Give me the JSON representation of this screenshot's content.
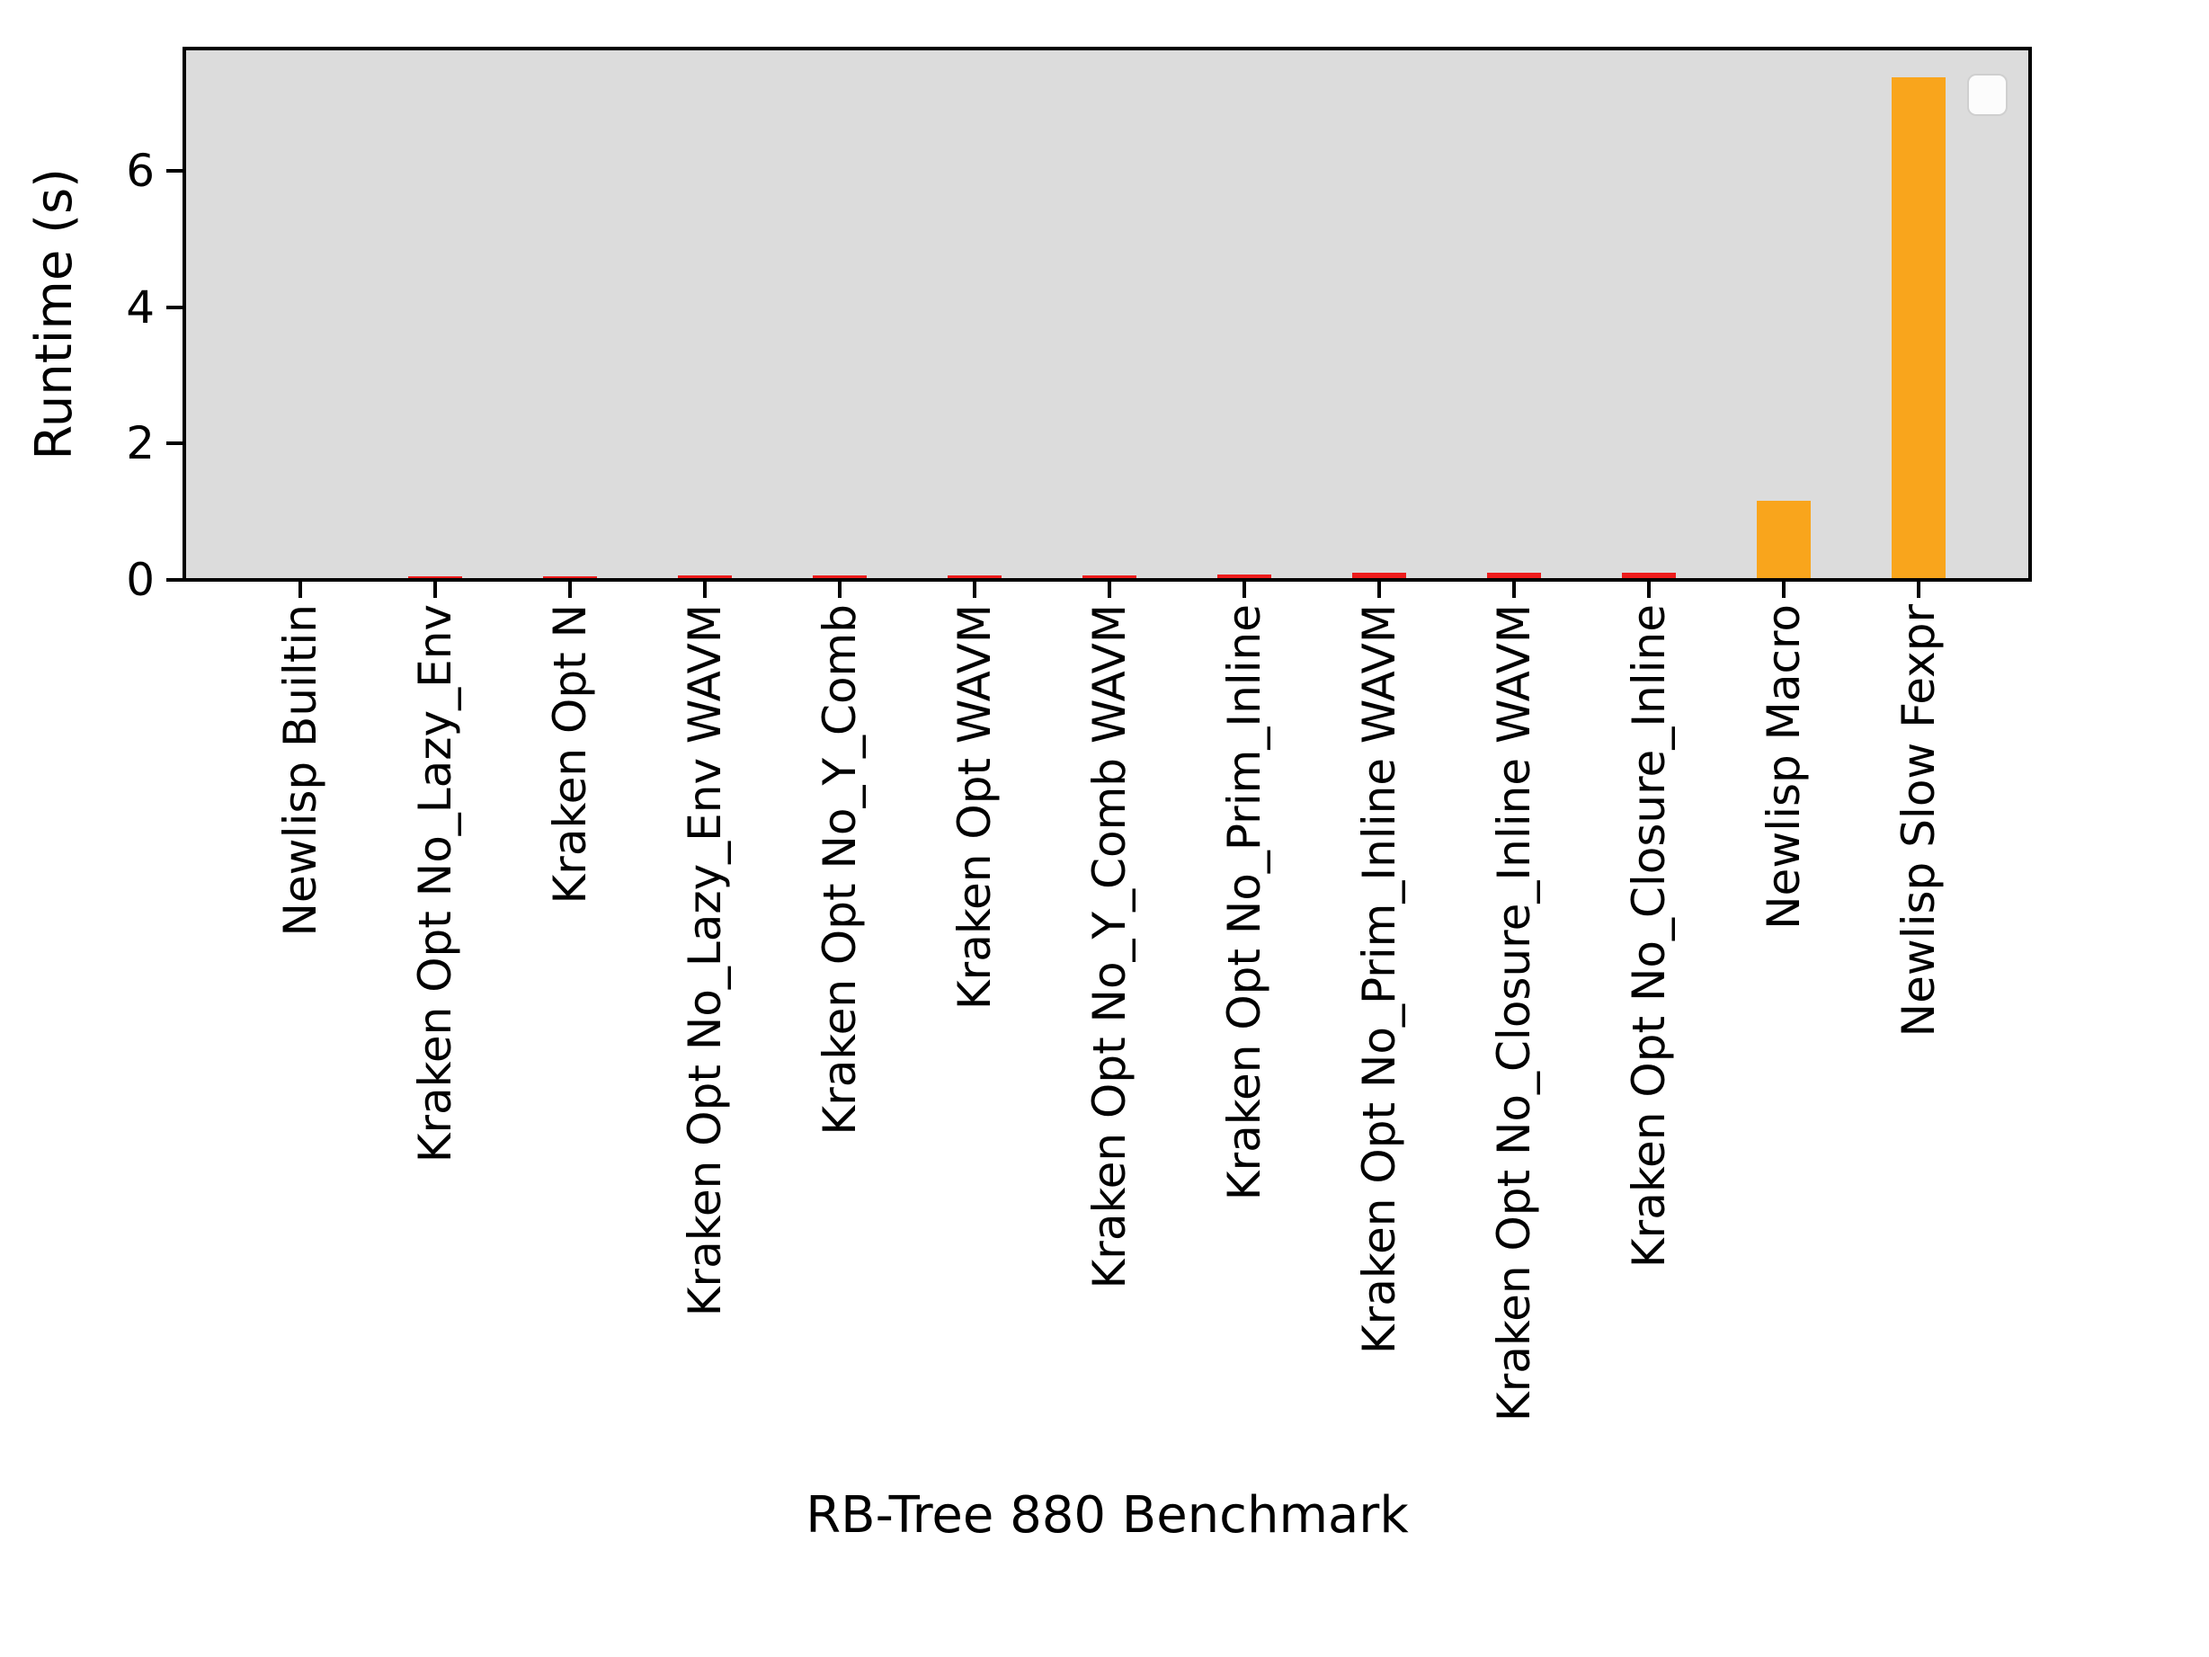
{
  "chart_data": {
    "type": "bar",
    "title": "",
    "xlabel": "RB-Tree 880 Benchmark",
    "ylabel": "Runtime (s)",
    "categories": [
      "Newlisp Builtin",
      "Kraken Opt No_Lazy_Env",
      "Kraken Opt N",
      "Kraken Opt No_Lazy_Env WAVM",
      "Kraken Opt No_Y_Comb",
      "Kraken Opt WAVM",
      "Kraken Opt No_Y_Comb WAVM",
      "Kraken Opt No_Prim_Inline",
      "Kraken Opt No_Prim_Inline WAVM",
      "Kraken Opt No_Closure_Inline WAVM",
      "Kraken Opt No_Closure_Inline",
      "Newlisp Macro",
      "Newlisp Slow Fexpr"
    ],
    "values": [
      0.005,
      0.05,
      0.05,
      0.06,
      0.06,
      0.07,
      0.07,
      0.08,
      0.1,
      0.1,
      0.1,
      1.16,
      7.38
    ],
    "bar_colors": [
      "#f9a51c",
      "#ed1c1c",
      "#ed1c1c",
      "#ed1c1c",
      "#ed1c1c",
      "#ed1c1c",
      "#ed1c1c",
      "#ed1c1c",
      "#ed1c1c",
      "#ed1c1c",
      "#ed1c1c",
      "#f9a51c",
      "#f9a51c"
    ],
    "yticks": [
      0,
      2,
      4,
      6
    ],
    "ylim": [
      0,
      7.8
    ],
    "grid": false,
    "legend": {
      "entries": [],
      "position": "upper right"
    },
    "plot_background": "#dcdcdc",
    "bar_width_fraction": 0.4
  },
  "colors": {
    "kraken_red": "#ed1c1c",
    "newlisp_orange": "#f9a51c",
    "plot_background": "#dcdcdc",
    "spine": "#000000",
    "legend_fill": "#fcfcfc",
    "legend_border": "#cfcfcf",
    "figure_background": "#ffffff"
  }
}
